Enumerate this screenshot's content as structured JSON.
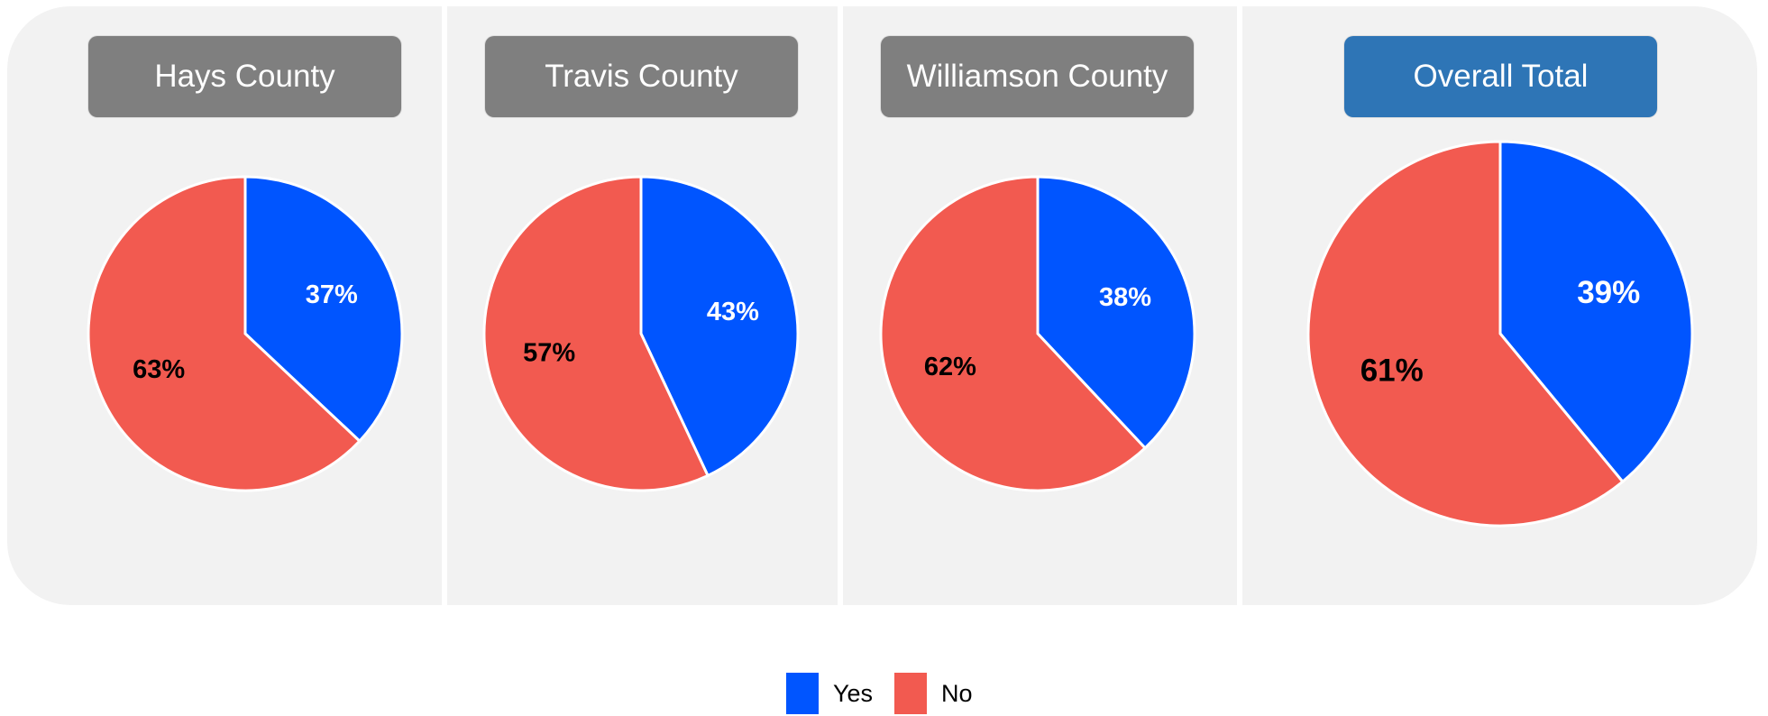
{
  "colors": {
    "yes": "#0055ff",
    "no": "#f25a50",
    "header_county": "#7f7f7f",
    "header_total": "#2e75b6"
  },
  "legend": {
    "items": [
      {
        "label": "Yes",
        "color": "#0055ff"
      },
      {
        "label": "No",
        "color": "#f25a50"
      }
    ]
  },
  "chart_data": [
    {
      "type": "pie",
      "title": "Hays County",
      "labels": [
        "Yes",
        "No"
      ],
      "values": [
        37,
        63
      ],
      "data_labels": [
        "37%",
        "63%"
      ]
    },
    {
      "type": "pie",
      "title": "Travis County",
      "labels": [
        "Yes",
        "No"
      ],
      "values": [
        43,
        57
      ],
      "data_labels": [
        "43%",
        "57%"
      ]
    },
    {
      "type": "pie",
      "title": "Williamson County",
      "labels": [
        "Yes",
        "No"
      ],
      "values": [
        38,
        62
      ],
      "data_labels": [
        "38%",
        "62%"
      ]
    },
    {
      "type": "pie",
      "title": "Overall Total",
      "labels": [
        "Yes",
        "No"
      ],
      "values": [
        39,
        61
      ],
      "data_labels": [
        "39%",
        "61%"
      ]
    }
  ]
}
